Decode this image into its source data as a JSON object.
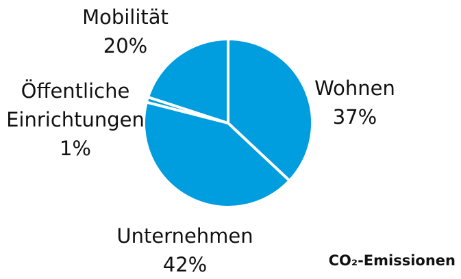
{
  "chart_data": {
    "type": "pie",
    "title": "CO₂-Emissionen",
    "categories": [
      "Wohnen",
      "Unternehmen",
      "Öffentliche Einrichtungen",
      "Mobilität"
    ],
    "values": [
      37,
      42,
      1,
      20
    ],
    "value_labels": [
      "37%",
      "42%",
      "1%",
      "20%"
    ],
    "color": "#009ddf"
  }
}
